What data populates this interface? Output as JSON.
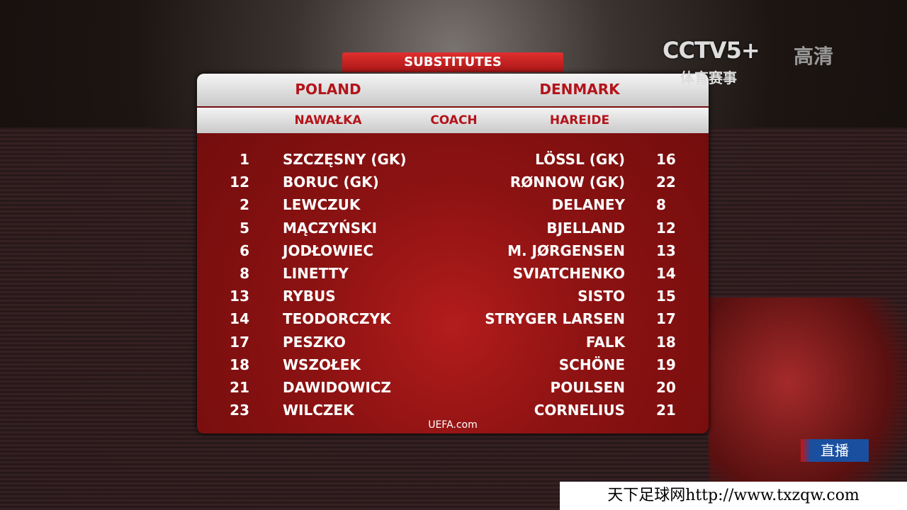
{
  "header": {
    "title": "SUBSTITUTES",
    "home_team": "POLAND",
    "away_team": "DENMARK",
    "home_coach": "NAWAŁKA",
    "coach_label": "COACH",
    "away_coach": "HAREIDE"
  },
  "table": {
    "rows": [
      [
        1,
        "SZCZĘSNY (GK)",
        "LÖSSL (GK)",
        16
      ],
      [
        12,
        "BORUC (GK)",
        "RØNNOW (GK)",
        22
      ],
      [
        2,
        "LEWCZUK",
        "DELANEY",
        8
      ],
      [
        5,
        "MĄCZYŃSKI",
        "BJELLAND",
        12
      ],
      [
        6,
        "JODŁOWIEC",
        "M. JØRGENSEN",
        13
      ],
      [
        8,
        "LINETTY",
        "SVIATCHENKO",
        14
      ],
      [
        13,
        "RYBUS",
        "SISTO",
        15
      ],
      [
        14,
        "TEODORCZYK",
        "STRYGER LARSEN",
        17
      ],
      [
        17,
        "PESZKO",
        "FALK",
        18
      ],
      [
        18,
        "WSZOŁEK",
        "SCHÖNE",
        19
      ],
      [
        21,
        "DAWIDOWICZ",
        "POULSEN",
        20
      ],
      [
        23,
        "WILCZEK",
        "CORNELIUS",
        21
      ]
    ]
  },
  "footer": {
    "sponsor": "UEFA.com"
  },
  "overlay": {
    "channel": "CCTV5+",
    "channel_sub": "体育赛事",
    "hd": "高清",
    "live": "直播",
    "watermark": "天下足球网http://www.txzqw.com"
  }
}
